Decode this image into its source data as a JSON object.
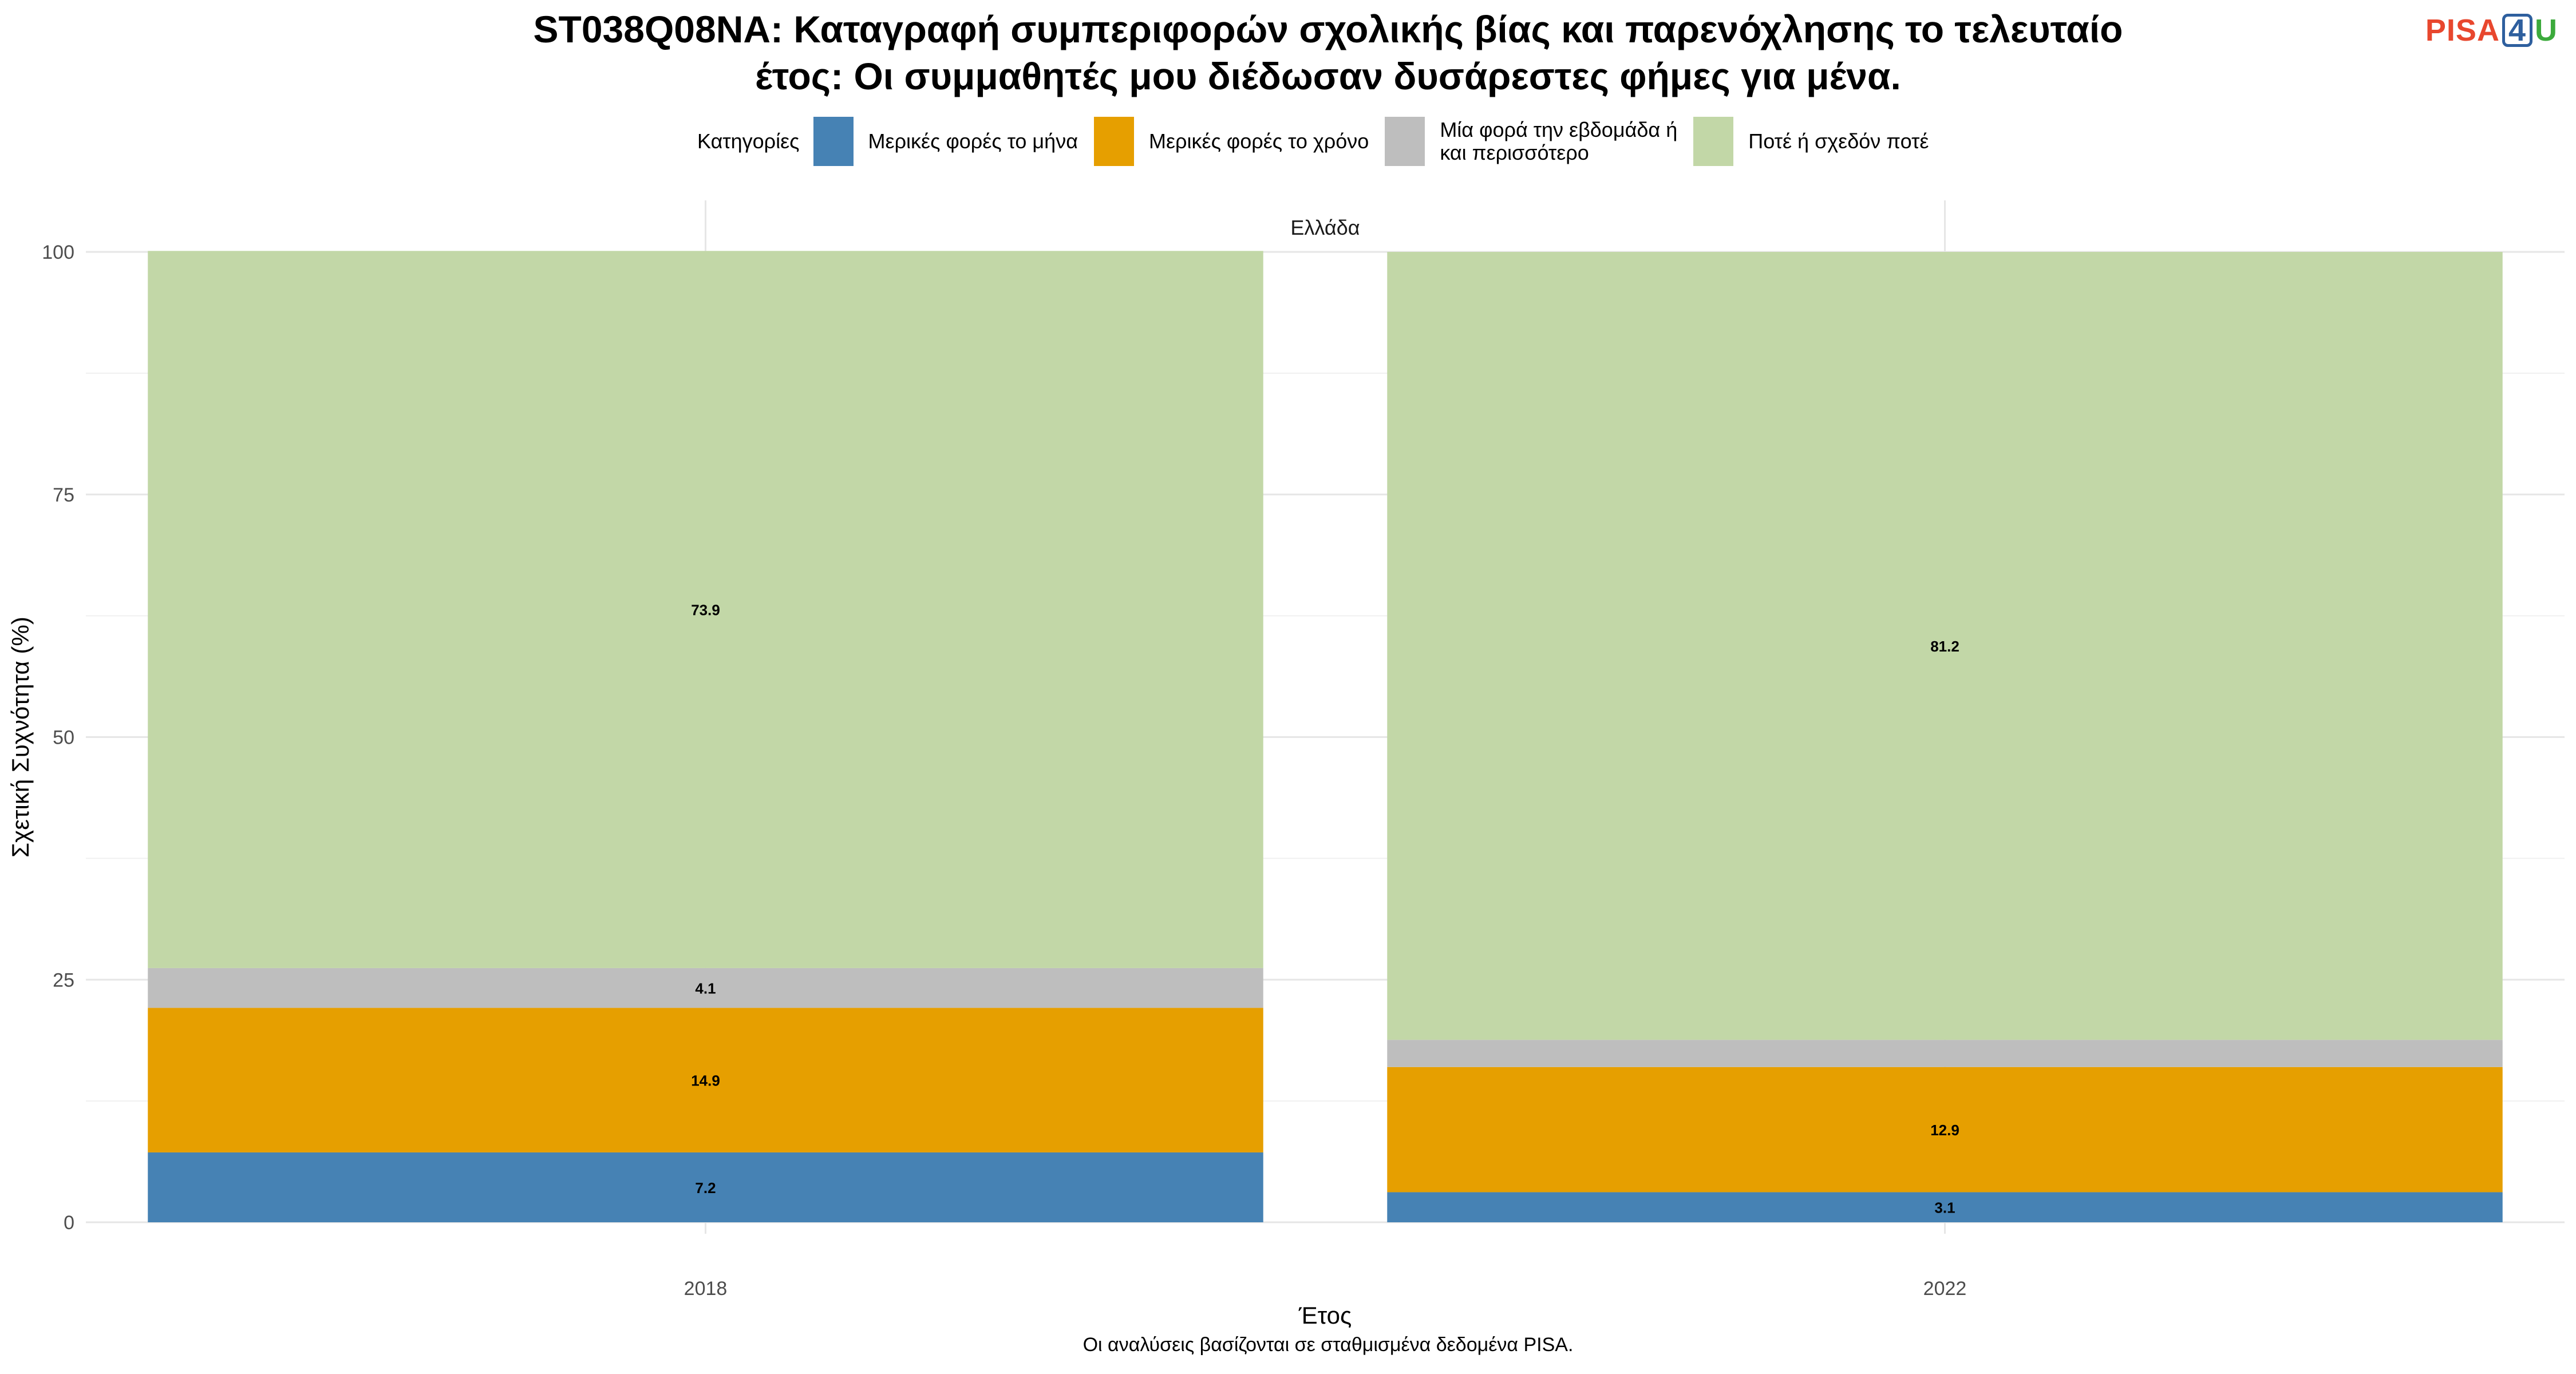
{
  "title": {
    "line1": "ST038Q08NA: Καταγραφή συμπεριφορών σχολικής βίας και παρενόχλησης το τελευταίο",
    "line2": "έτος: Οι συμμαθητές μου διέδωσαν δυσάρεστες φήμες για μένα."
  },
  "logo": {
    "part1": "PISA",
    "part2": "4",
    "part3": "U"
  },
  "legend": {
    "title": "Κατηγορίες"
  },
  "caption": "Οι αναλύσεις βασίζονται σε σταθμισμένα δεδομένα PISA.",
  "chart_data": {
    "type": "bar",
    "stacked": true,
    "facet": "Ελλάδα",
    "categories": [
      "2018",
      "2022"
    ],
    "xlabel": "Έτος",
    "ylabel": "Σχετική Συχνότητα (%)",
    "ylim": [
      0,
      100
    ],
    "yticks": [
      0,
      25,
      50,
      75,
      100
    ],
    "grid": true,
    "legend_position": "top",
    "series": [
      {
        "name": "Μερικές φορές το μήνα",
        "color": "#4682b4",
        "values": [
          7.2,
          3.1
        ],
        "labels": [
          "7.2",
          "3.1"
        ]
      },
      {
        "name": "Μερικές φορές το χρόνο",
        "color": "#e69f00",
        "values": [
          14.9,
          12.9
        ],
        "labels": [
          "14.9",
          "12.9"
        ]
      },
      {
        "name": "Μία φορά την εβδομάδα ή\nκαι περισσότερο",
        "color": "#bebebe",
        "values": [
          4.1,
          2.8
        ],
        "labels": [
          "4.1",
          ""
        ]
      },
      {
        "name": "Ποτέ ή σχεδόν ποτέ",
        "color": "#c2d7a7",
        "values": [
          73.9,
          81.2
        ],
        "labels": [
          "73.9",
          "81.2"
        ]
      }
    ]
  }
}
